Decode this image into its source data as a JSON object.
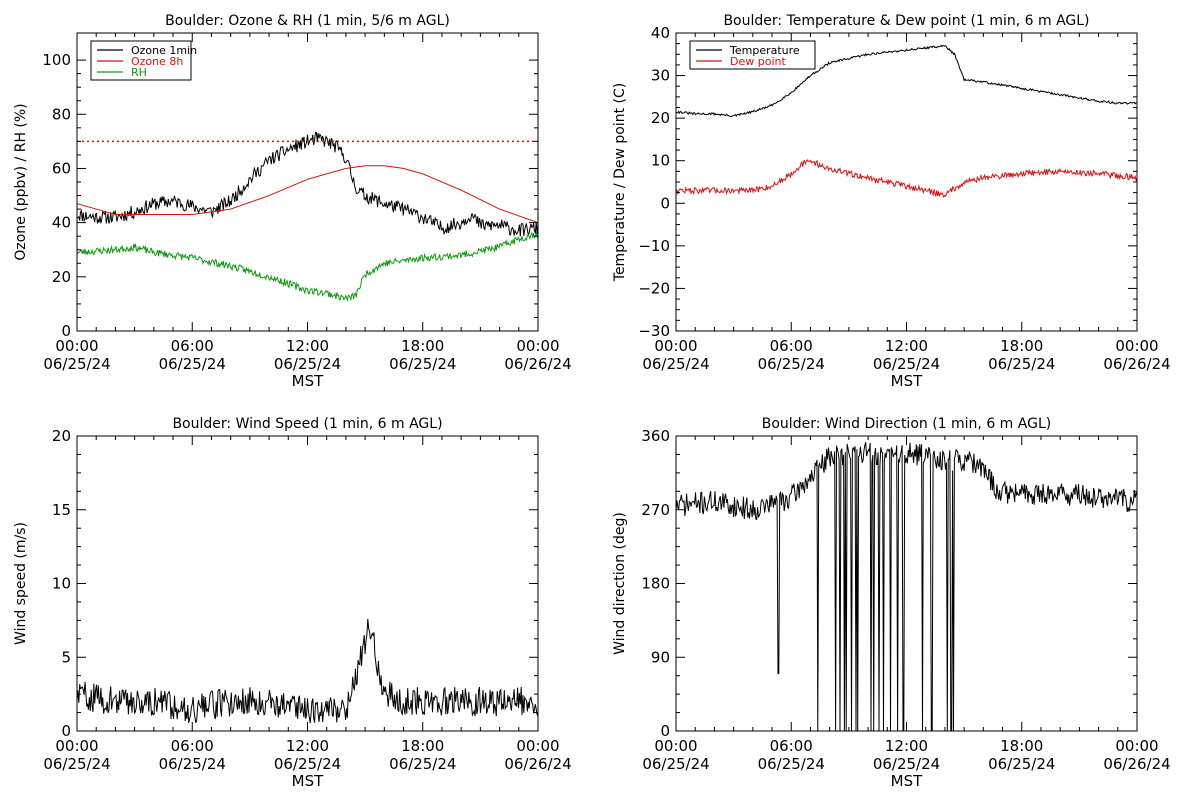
{
  "chart_data": [
    {
      "type": "line",
      "title": "Boulder: Ozone & RH (1 min, 5/6 m AGL)",
      "ylabel": "Ozone (ppbv) / RH (%)",
      "xlabel": "MST",
      "xlim": [
        0,
        24
      ],
      "ylim": [
        0,
        110
      ],
      "x_ticks": [
        0,
        6,
        12,
        18,
        24
      ],
      "x_tick_labels": [
        [
          "00:00",
          "06/25/24"
        ],
        [
          "06:00",
          "06/25/24"
        ],
        [
          "12:00",
          "06/25/24"
        ],
        [
          "18:00",
          "06/25/24"
        ],
        [
          "00:00",
          "06/26/24"
        ]
      ],
      "y_ticks": [
        0,
        20,
        40,
        60,
        80,
        100
      ],
      "y_tick_labels": [
        "0",
        "20",
        "40",
        "60",
        "80",
        "100"
      ],
      "reference_line": {
        "y": 70,
        "color": "#e01010",
        "style": "dotted"
      },
      "legend": {
        "position": "top-left",
        "entries": [
          {
            "label": "Ozone 1min",
            "color": "#000000"
          },
          {
            "label": "Ozone 8h",
            "color": "#e01010"
          },
          {
            "label": "RH",
            "color": "#119911"
          }
        ]
      },
      "series": [
        {
          "name": "Ozone 1min",
          "color": "#000000",
          "noise": 2.5,
          "seed": 11,
          "x": [
            0,
            1,
            2,
            3,
            4,
            5,
            6,
            7,
            8,
            9,
            10,
            11,
            12,
            12.5,
            13,
            13.5,
            14,
            14.3,
            14.6,
            15,
            16,
            17,
            18,
            19,
            20,
            20.5,
            21,
            22,
            23,
            24
          ],
          "y": [
            43,
            42,
            42,
            44,
            47,
            48,
            46,
            44,
            48,
            56,
            63,
            67,
            70,
            71,
            70,
            68,
            64,
            57,
            52,
            50,
            47,
            45,
            42,
            38,
            40,
            43,
            39,
            39,
            37,
            38
          ]
        },
        {
          "name": "Ozone 8h",
          "color": "#e01010",
          "noise": 0,
          "seed": 1,
          "x": [
            0,
            2,
            4,
            6,
            8,
            10,
            12,
            14,
            15,
            16,
            17,
            18,
            20,
            22,
            24
          ],
          "y": [
            47,
            43,
            43,
            43,
            45,
            50,
            56,
            60,
            61,
            61,
            60,
            58,
            52,
            45,
            40
          ]
        },
        {
          "name": "RH",
          "color": "#119911",
          "noise": 1.3,
          "seed": 23,
          "x": [
            0,
            2,
            3,
            4,
            6,
            8,
            10,
            12,
            13,
            14,
            14.5,
            15,
            16,
            18,
            20,
            22,
            23,
            24
          ],
          "y": [
            29,
            30,
            31,
            29,
            27,
            24,
            20,
            15,
            14,
            12,
            13,
            21,
            25,
            27,
            28,
            31,
            34,
            36
          ]
        }
      ]
    },
    {
      "type": "line",
      "title": "Boulder: Temperature & Dew point (1 min, 6 m AGL)",
      "ylabel": "Temperature / Dew point (C)",
      "xlabel": "MST",
      "xlim": [
        0,
        24
      ],
      "ylim": [
        -30,
        40
      ],
      "x_ticks": [
        0,
        6,
        12,
        18,
        24
      ],
      "x_tick_labels": [
        [
          "00:00",
          "06/25/24"
        ],
        [
          "06:00",
          "06/25/24"
        ],
        [
          "12:00",
          "06/25/24"
        ],
        [
          "18:00",
          "06/25/24"
        ],
        [
          "00:00",
          "06/26/24"
        ]
      ],
      "y_ticks": [
        -30,
        -20,
        -10,
        0,
        10,
        20,
        30,
        40
      ],
      "y_tick_labels": [
        "−30",
        "−20",
        "−10",
        "0",
        "10",
        "20",
        "30",
        "40"
      ],
      "legend": {
        "position": "top-left",
        "entries": [
          {
            "label": "Temperature",
            "color": "#000000"
          },
          {
            "label": "Dew point",
            "color": "#e01010"
          }
        ]
      },
      "series": [
        {
          "name": "Temperature",
          "color": "#000000",
          "noise": 0.25,
          "seed": 31,
          "x": [
            0,
            1,
            2,
            3,
            4,
            5,
            6,
            7,
            8,
            9,
            10,
            11,
            12,
            13,
            14,
            14.5,
            15,
            16,
            18,
            20,
            22,
            23,
            24
          ],
          "y": [
            21.5,
            21,
            21,
            20.5,
            21.5,
            23,
            26,
            30,
            33,
            34,
            35,
            35.5,
            36,
            36.5,
            37,
            35,
            29,
            28.5,
            27,
            25.5,
            24,
            23.5,
            23.5
          ]
        },
        {
          "name": "Dew point",
          "color": "#e01010",
          "noise": 0.7,
          "seed": 47,
          "x": [
            0,
            2,
            4,
            5,
            6,
            6.5,
            7,
            8,
            10,
            12,
            13,
            14,
            15,
            16,
            18,
            20,
            22,
            24
          ],
          "y": [
            3,
            3,
            3,
            4,
            7,
            9,
            10,
            8,
            6,
            4,
            3,
            2,
            5,
            6,
            7,
            7.5,
            7,
            6
          ]
        }
      ]
    },
    {
      "type": "line",
      "title": "Boulder: Wind Speed (1 min, 6 m AGL)",
      "ylabel": "Wind speed (m/s)",
      "xlabel": "MST",
      "xlim": [
        0,
        24
      ],
      "ylim": [
        0,
        20
      ],
      "x_ticks": [
        0,
        6,
        12,
        18,
        24
      ],
      "x_tick_labels": [
        [
          "00:00",
          "06/25/24"
        ],
        [
          "06:00",
          "06/25/24"
        ],
        [
          "12:00",
          "06/25/24"
        ],
        [
          "18:00",
          "06/25/24"
        ],
        [
          "00:00",
          "06/26/24"
        ]
      ],
      "y_ticks": [
        0,
        5,
        10,
        15,
        20
      ],
      "y_tick_labels": [
        "0",
        "5",
        "10",
        "15",
        "20"
      ],
      "series": [
        {
          "name": "",
          "color": "#000000",
          "noise": 1.0,
          "seed": 59,
          "x": [
            0,
            2,
            4,
            6,
            8,
            10,
            12,
            14,
            14.8,
            15.2,
            15.6,
            16,
            17,
            18,
            20,
            22,
            24
          ],
          "y": [
            2.5,
            2,
            2,
            1.5,
            2,
            2,
            1.5,
            1.5,
            5,
            7,
            5,
            2.5,
            2,
            2,
            2,
            2,
            2
          ]
        }
      ]
    },
    {
      "type": "line",
      "title": "Boulder: Wind Direction (1 min, 6 m AGL)",
      "ylabel": "Wind direction (deg)",
      "xlabel": "MST",
      "xlim": [
        0,
        24
      ],
      "ylim": [
        0,
        360
      ],
      "x_ticks": [
        0,
        6,
        12,
        18,
        24
      ],
      "x_tick_labels": [
        [
          "00:00",
          "06/25/24"
        ],
        [
          "06:00",
          "06/25/24"
        ],
        [
          "12:00",
          "06/25/24"
        ],
        [
          "18:00",
          "06/25/24"
        ],
        [
          "00:00",
          "06/26/24"
        ]
      ],
      "y_ticks": [
        0,
        90,
        180,
        270,
        360
      ],
      "y_tick_labels": [
        "0",
        "90",
        "180",
        "270",
        "360"
      ],
      "series": [
        {
          "name": "",
          "color": "#000000",
          "noise": 14,
          "seed": 71,
          "x": [
            0,
            2,
            4,
            6,
            7,
            8,
            9,
            10,
            11,
            12,
            13,
            14,
            15,
            16,
            16.5,
            17,
            18,
            20,
            22,
            24
          ],
          "y": [
            275,
            280,
            270,
            285,
            310,
            335,
            340,
            340,
            335,
            340,
            335,
            330,
            330,
            320,
            300,
            290,
            290,
            290,
            285,
            280
          ]
        }
      ]
    }
  ]
}
